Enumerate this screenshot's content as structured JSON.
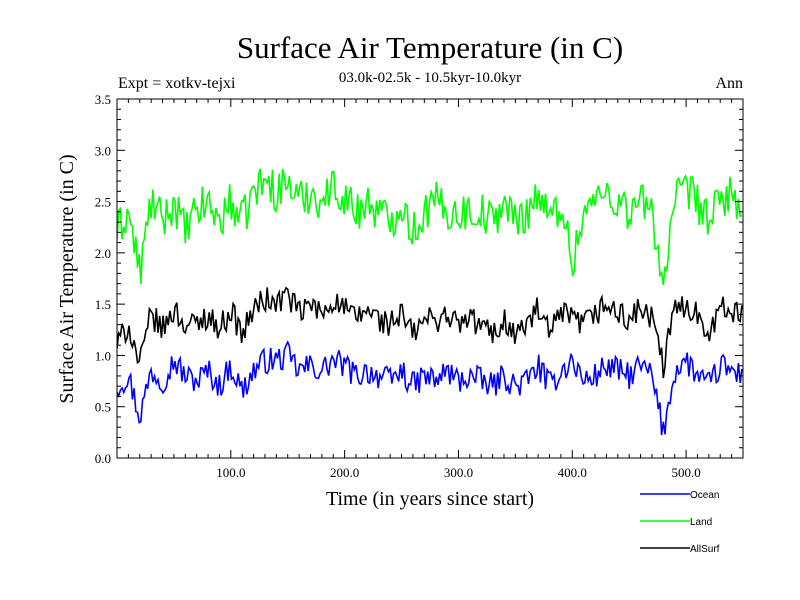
{
  "chart_data": {
    "type": "line",
    "title": "Surface Air Temperature (in C)",
    "subtitle": "03.0k-02.5k - 10.5kyr-10.0kyr",
    "expt_label": "Expt = xotkv-tejxi",
    "season_label": "Ann",
    "xlabel": "Time (in years since start)",
    "ylabel": "Surface Air Temperature (in C)",
    "xlim": [
      0,
      550
    ],
    "ylim": [
      0.0,
      3.5
    ],
    "x_ticks": [
      100,
      200,
      300,
      400,
      500
    ],
    "x_tick_labels": [
      "100.0",
      "200.0",
      "300.0",
      "400.0",
      "500.0"
    ],
    "y_ticks": [
      0.0,
      0.5,
      1.0,
      1.5,
      2.0,
      2.5,
      3.0,
      3.5
    ],
    "y_tick_labels": [
      "0.0",
      "0.5",
      "1.0",
      "1.5",
      "2.0",
      "2.5",
      "3.0",
      "3.5"
    ],
    "legend_position": "bottom-right-outside",
    "x": [
      0,
      10,
      20,
      30,
      40,
      50,
      60,
      70,
      80,
      90,
      100,
      110,
      120,
      130,
      140,
      150,
      160,
      170,
      180,
      190,
      200,
      210,
      220,
      230,
      240,
      250,
      260,
      270,
      280,
      290,
      300,
      310,
      320,
      330,
      340,
      350,
      360,
      370,
      380,
      390,
      400,
      410,
      420,
      430,
      440,
      450,
      460,
      470,
      480,
      490,
      500,
      510,
      520,
      530,
      540,
      550
    ],
    "series": [
      {
        "name": "Ocean",
        "color": "#0000ff",
        "values": [
          0.7,
          0.8,
          0.4,
          0.85,
          0.75,
          0.95,
          0.8,
          0.75,
          0.85,
          0.7,
          0.9,
          0.65,
          0.85,
          0.95,
          0.95,
          1.0,
          0.85,
          0.9,
          0.85,
          0.95,
          0.9,
          0.8,
          0.85,
          0.8,
          0.75,
          0.85,
          0.7,
          0.8,
          0.75,
          0.85,
          0.75,
          0.8,
          0.75,
          0.7,
          0.8,
          0.7,
          0.75,
          0.9,
          0.7,
          0.85,
          0.95,
          0.75,
          0.8,
          0.9,
          0.85,
          0.8,
          0.9,
          0.8,
          0.25,
          0.85,
          0.95,
          0.8,
          0.7,
          0.9,
          0.85,
          0.8
        ]
      },
      {
        "name": "Land",
        "color": "#00ff00",
        "values": [
          2.2,
          2.4,
          1.8,
          2.5,
          2.3,
          2.5,
          2.2,
          2.4,
          2.5,
          2.3,
          2.5,
          2.3,
          2.6,
          2.7,
          2.6,
          2.7,
          2.5,
          2.6,
          2.5,
          2.65,
          2.55,
          2.4,
          2.5,
          2.4,
          2.3,
          2.5,
          2.2,
          2.4,
          2.5,
          2.4,
          2.4,
          2.4,
          2.4,
          2.3,
          2.5,
          2.3,
          2.4,
          2.6,
          2.3,
          2.5,
          1.9,
          2.4,
          2.5,
          2.6,
          2.5,
          2.4,
          2.5,
          2.4,
          1.7,
          2.5,
          2.6,
          2.5,
          2.3,
          2.5,
          2.6,
          2.4
        ]
      },
      {
        "name": "AllSurf",
        "color": "#000000",
        "values": [
          1.1,
          1.3,
          0.9,
          1.4,
          1.25,
          1.45,
          1.3,
          1.3,
          1.4,
          1.25,
          1.45,
          1.2,
          1.45,
          1.55,
          1.5,
          1.6,
          1.4,
          1.5,
          1.4,
          1.55,
          1.45,
          1.35,
          1.45,
          1.35,
          1.3,
          1.4,
          1.2,
          1.35,
          1.35,
          1.4,
          1.3,
          1.35,
          1.3,
          1.2,
          1.35,
          1.2,
          1.3,
          1.45,
          1.2,
          1.4,
          1.35,
          1.3,
          1.4,
          1.5,
          1.4,
          1.35,
          1.45,
          1.35,
          0.9,
          1.45,
          1.5,
          1.4,
          1.25,
          1.45,
          1.45,
          1.35
        ]
      }
    ]
  }
}
